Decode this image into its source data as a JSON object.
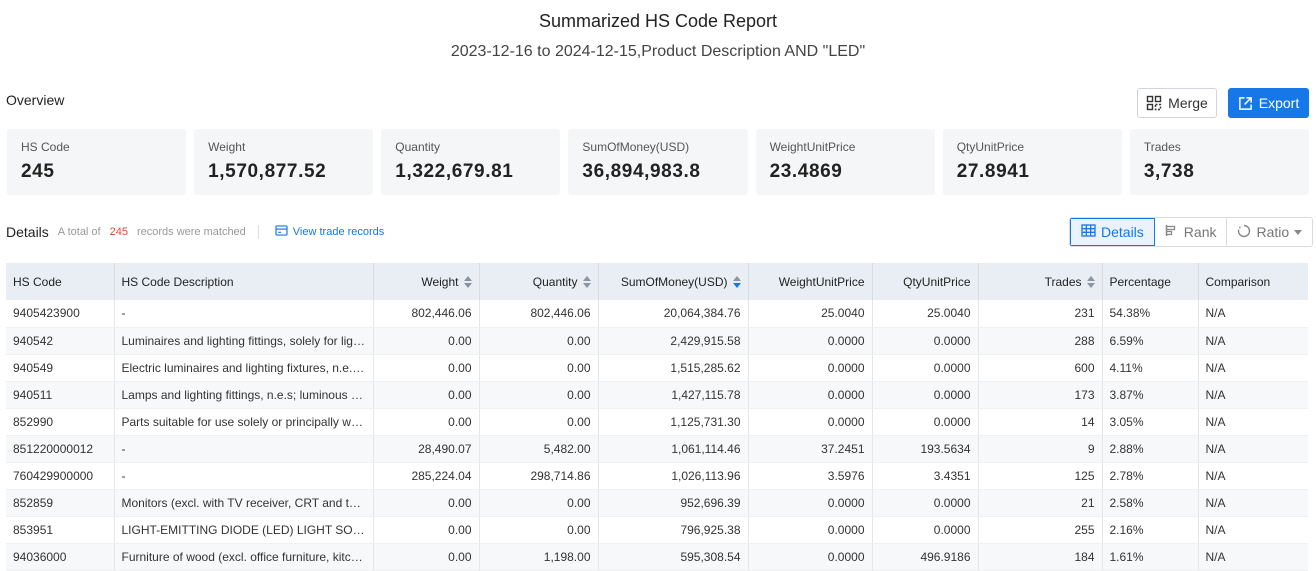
{
  "report": {
    "title": "Summarized HS Code Report",
    "subtitle": "2023-12-16 to 2024-12-15,Product Description AND \"LED\""
  },
  "overview": {
    "label": "Overview",
    "merge_label": "Merge",
    "export_label": "Export"
  },
  "stats": [
    {
      "label": "HS Code",
      "value": "245"
    },
    {
      "label": "Weight",
      "value": "1,570,877.52"
    },
    {
      "label": "Quantity",
      "value": "1,322,679.81"
    },
    {
      "label": "SumOfMoney(USD)",
      "value": "36,894,983.8"
    },
    {
      "label": "WeightUnitPrice",
      "value": "23.4869"
    },
    {
      "label": "QtyUnitPrice",
      "value": "27.8941"
    },
    {
      "label": "Trades",
      "value": "3,738"
    }
  ],
  "details": {
    "title": "Details",
    "total_prefix": "A total of",
    "total_count": "245",
    "total_suffix": "records were matched",
    "view_trade_records": "View trade records"
  },
  "view_toggle": {
    "details": "Details",
    "rank": "Rank",
    "ratio": "Ratio"
  },
  "table": {
    "columns": [
      "HS Code",
      "HS Code Description",
      "Weight",
      "Quantity",
      "SumOfMoney(USD)",
      "WeightUnitPrice",
      "QtyUnitPrice",
      "Trades",
      "Percentage",
      "Comparison"
    ],
    "rows": [
      [
        "9405423900",
        "-",
        "802,446.06",
        "802,446.06",
        "20,064,384.76",
        "25.0040",
        "25.0040",
        "231",
        "54.38%",
        "N/A"
      ],
      [
        "940542",
        "Luminaires and lighting fittings, solely for light-emitting diode (LED) light sources",
        "0.00",
        "0.00",
        "2,429,915.58",
        "0.0000",
        "0.0000",
        "288",
        "6.59%",
        "N/A"
      ],
      [
        "940549",
        "Electric luminaires and lighting fixtures, n.e.s. (excl. for LED light sources)",
        "0.00",
        "0.00",
        "1,515,285.62",
        "0.0000",
        "0.0000",
        "600",
        "4.11%",
        "N/A"
      ],
      [
        "940511",
        "Lamps and lighting fittings, n.e.s; luminous panels and signs",
        "0.00",
        "0.00",
        "1,427,115.78",
        "0.0000",
        "0.0000",
        "173",
        "3.87%",
        "N/A"
      ],
      [
        "852990",
        "Parts suitable for use solely or principally with transmission apparatus",
        "0.00",
        "0.00",
        "1,125,731.30",
        "0.0000",
        "0.0000",
        "14",
        "3.05%",
        "N/A"
      ],
      [
        "851220000012",
        "-",
        "28,490.07",
        "5,482.00",
        "1,061,114.46",
        "37.2451",
        "193.5634",
        "9",
        "2.88%",
        "N/A"
      ],
      [
        "760429900000",
        "-",
        "285,224.04",
        "298,714.86",
        "1,026,113.96",
        "3.5976",
        "3.4351",
        "125",
        "2.78%",
        "N/A"
      ],
      [
        "852859",
        "Monitors (excl. with TV receiver, CRT and those of a kind solely used)",
        "0.00",
        "0.00",
        "952,696.39",
        "0.0000",
        "0.0000",
        "21",
        "2.58%",
        "N/A"
      ],
      [
        "853951",
        "LIGHT-EMITTING DIODE (LED) LIGHT SOURCES MODULES",
        "0.00",
        "0.00",
        "796,925.38",
        "0.0000",
        "0.0000",
        "255",
        "2.16%",
        "N/A"
      ],
      [
        "94036000",
        "Furniture of wood (excl. office furniture, kitchen and bedroom)",
        "0.00",
        "1,198.00",
        "595,308.54",
        "0.0000",
        "496.9186",
        "184",
        "1.61%",
        "N/A"
      ]
    ]
  }
}
